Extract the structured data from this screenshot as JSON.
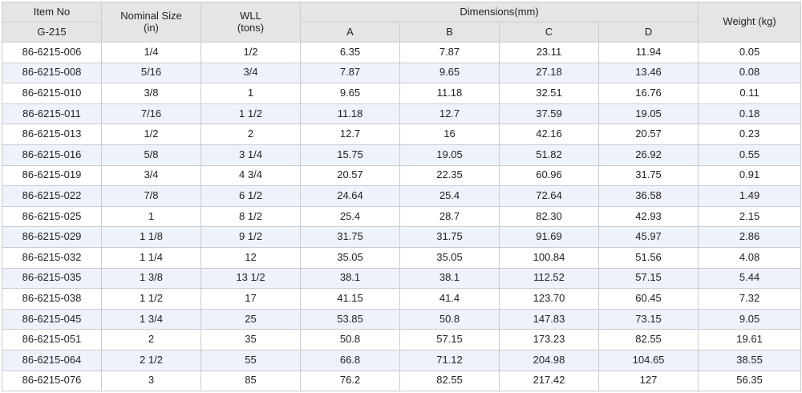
{
  "header": {
    "item_no": "Item No",
    "series": "G-215",
    "nominal_size_line1": "Nominal Size",
    "nominal_size_line2": "(in)",
    "wll_line1": "WLL",
    "wll_line2": "(tons)",
    "dimensions": "Dimensions(mm)",
    "col_a": "A",
    "col_b": "B",
    "col_c": "C",
    "col_d": "D",
    "weight": "Weight (kg)"
  },
  "rows": [
    [
      "86-6215-006",
      "1/4",
      "1/2",
      "6.35",
      "7.87",
      "23.11",
      "11.94",
      "0.05"
    ],
    [
      "86-6215-008",
      "5/16",
      "3/4",
      "7.87",
      "9.65",
      "27.18",
      "13.46",
      "0.08"
    ],
    [
      "86-6215-010",
      "3/8",
      "1",
      "9.65",
      "11.18",
      "32.51",
      "16.76",
      "0.11"
    ],
    [
      "86-6215-011",
      "7/16",
      "1 1/2",
      "11.18",
      "12.7",
      "37.59",
      "19.05",
      "0.18"
    ],
    [
      "86-6215-013",
      "1/2",
      "2",
      "12.7",
      "16",
      "42.16",
      "20.57",
      "0.23"
    ],
    [
      "86-6215-016",
      "5/8",
      "3 1/4",
      "15.75",
      "19.05",
      "51.82",
      "26.92",
      "0.55"
    ],
    [
      "86-6215-019",
      "3/4",
      "4 3/4",
      "20.57",
      "22.35",
      "60.96",
      "31.75",
      "0.91"
    ],
    [
      "86-6215-022",
      "7/8",
      "6 1/2",
      "24.64",
      "25.4",
      "72.64",
      "36.58",
      "1.49"
    ],
    [
      "86-6215-025",
      "1",
      "8 1/2",
      "25.4",
      "28.7",
      "82.30",
      "42.93",
      "2.15"
    ],
    [
      "86-6215-029",
      "1 1/8",
      "9 1/2",
      "31.75",
      "31.75",
      "91.69",
      "45.97",
      "2.86"
    ],
    [
      "86-6215-032",
      "1 1/4",
      "12",
      "35.05",
      "35.05",
      "100.84",
      "51.56",
      "4.08"
    ],
    [
      "86-6215-035",
      "1 3/8",
      "13 1/2",
      "38.1",
      "38.1",
      "112.52",
      "57.15",
      "5.44"
    ],
    [
      "86-6215-038",
      "1 1/2",
      "17",
      "41.15",
      "41.4",
      "123.70",
      "60.45",
      "7.32"
    ],
    [
      "86-6215-045",
      "1 3/4",
      "25",
      "53.85",
      "50.8",
      "147.83",
      "73.15",
      "9.05"
    ],
    [
      "86-6215-051",
      "2",
      "35",
      "50.8",
      "57.15",
      "173.23",
      "82.55",
      "19.61"
    ],
    [
      "86-6215-064",
      "2 1/2",
      "55",
      "66.8",
      "71.12",
      "204.98",
      "104.65",
      "38.55"
    ],
    [
      "86-6215-076",
      "3",
      "85",
      "76.2",
      "82.55",
      "217.42",
      "127",
      "56.35"
    ]
  ]
}
